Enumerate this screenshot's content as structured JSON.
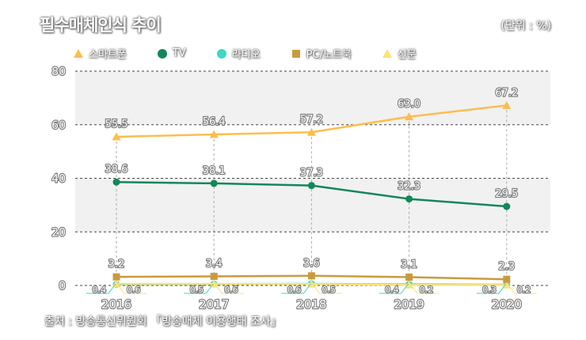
{
  "title": "필수매체인식 추이",
  "unit": "(단위 : %)",
  "source": "출처 : 방송통신위원회 「방송매체 이용행태 조사」",
  "chart_data": {
    "type": "line",
    "title": "필수매체인식 추이",
    "xlabel": "",
    "ylabel": "",
    "ylim": [
      0,
      80
    ],
    "yticks": [
      0,
      20,
      40,
      60,
      80
    ],
    "categories": [
      "2016",
      "2017",
      "2018",
      "2019",
      "2020"
    ],
    "legend_position": "top",
    "series": [
      {
        "name": "스마트폰",
        "color": "#FBBE4E",
        "marker": "triangle",
        "values": [
          55.5,
          56.4,
          57.2,
          63.0,
          67.2
        ]
      },
      {
        "name": "TV",
        "color": "#12875A",
        "marker": "circle",
        "values": [
          38.6,
          38.1,
          37.3,
          32.3,
          29.5
        ]
      },
      {
        "name": "라디오",
        "color": "#3ED6C8",
        "marker": "circle",
        "values": [
          0.4,
          0.5,
          0.6,
          0.4,
          0.3
        ]
      },
      {
        "name": "PC/노트북",
        "color": "#CC9A3E",
        "marker": "square",
        "values": [
          3.2,
          3.4,
          3.6,
          3.1,
          2.3
        ]
      },
      {
        "name": "신문",
        "color": "#FCE27A",
        "marker": "triangle",
        "values": [
          0.6,
          0.6,
          0.5,
          0.2,
          0.2
        ]
      }
    ]
  }
}
